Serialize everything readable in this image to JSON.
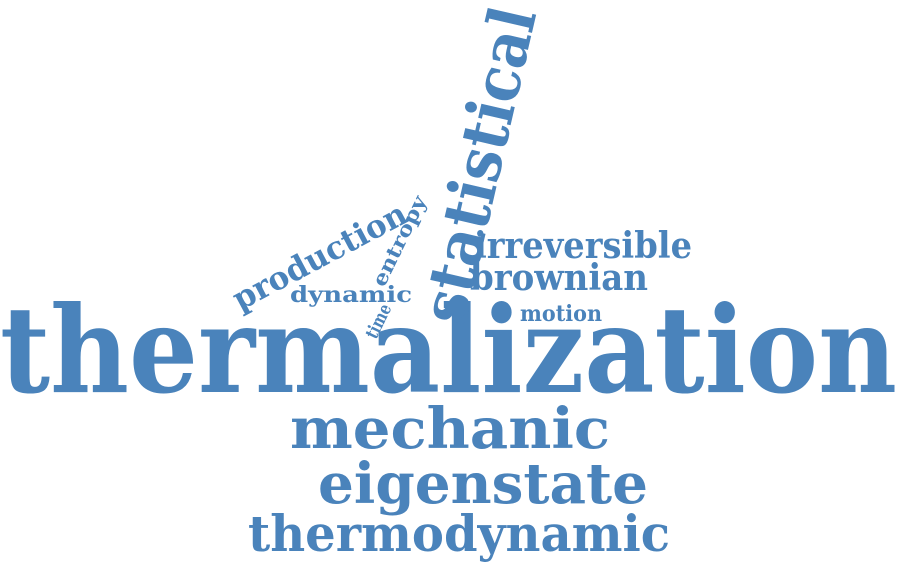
{
  "style": {
    "word_color": "#4a83bb",
    "background": "#ffffff"
  },
  "words": {
    "thermalization": "thermalization",
    "statistical": "statistical",
    "mechanic": "mechanic",
    "eigenstate": "eigenstate",
    "thermodynamic": "thermodynamic",
    "irreversible": "irreversible",
    "brownian": "brownian",
    "motion": "motion",
    "production": "production",
    "entropy": "entropy",
    "dynamic": "dynamic",
    "time": "time"
  }
}
